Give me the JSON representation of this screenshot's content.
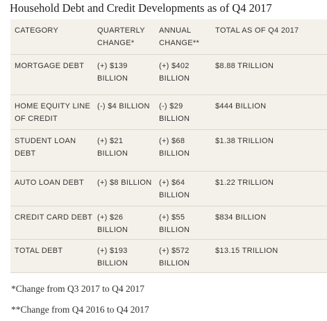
{
  "title": "Household Debt and Credit Developments as of Q4 2017",
  "table": {
    "header": [
      "CATEGORY",
      "QUARTERLY CHANGE*",
      "ANNUAL CHANGE**",
      "TOTAL AS OF Q4 2017"
    ],
    "rows": [
      [
        "MORTGAGE DEBT",
        "(+) $139 BILLION",
        "(+) $402 BILLION",
        "$8.88 TRILLION"
      ],
      [
        "HOME EQUITY LINE OF CREDIT",
        "(-) $4 BILLION",
        "(-) $29 BILLION",
        "$444 BILLION"
      ],
      [
        "STUDENT LOAN DEBT",
        "(+) $21 BILLION",
        "(+) $68 BILLION",
        "$1.38 TRILLION"
      ],
      [
        "AUTO LOAN DEBT",
        "(+) $8 BILLION",
        "(+) $64 BILLION",
        "$1.22 TRILLION"
      ],
      [
        "CREDIT CARD DEBT",
        "(+) $26 BILLION",
        "(+) $55 BILLION",
        "$834 BILLION"
      ],
      [
        "TOTAL DEBT",
        "(+) $193 BILLION",
        "(+) $572 BILLION",
        "$13.15 TRILLION"
      ]
    ]
  },
  "footnotes": [
    "*Change from Q3 2017 to Q4 2017",
    "**Change from Q4 2016 to Q4 2017"
  ]
}
